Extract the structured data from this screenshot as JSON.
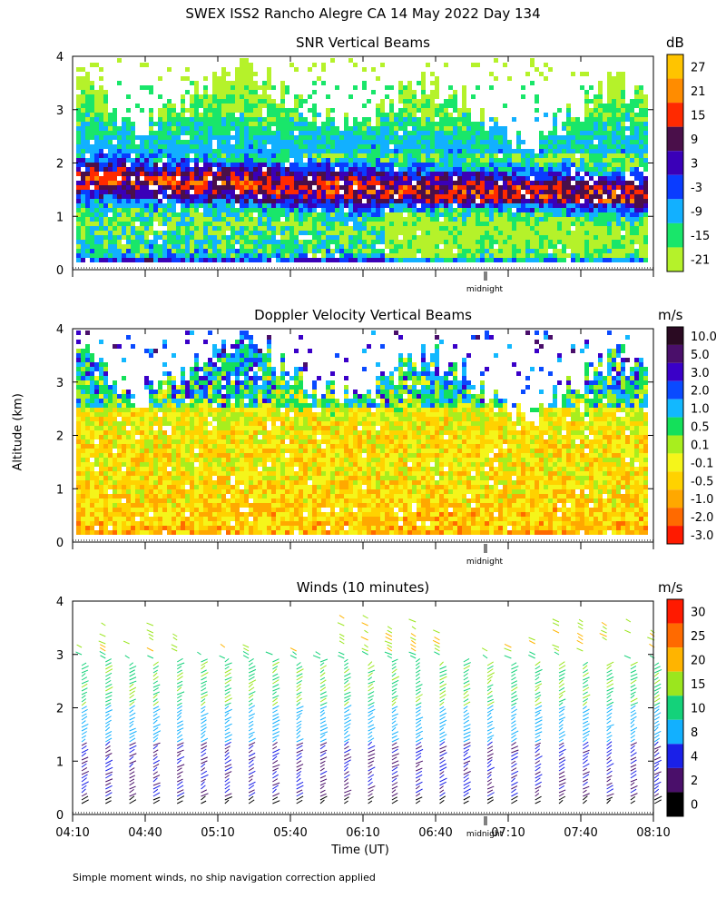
{
  "title": "SWEX ISS2 Rancho Alegre CA  14 May 2022 Day 134",
  "y_axis_label": "Altitude (km)",
  "x_axis_label": "Time (UT)",
  "footnote": "Simple moment winds, no ship navigation correction applied",
  "chart_data": [
    {
      "type": "heatmap",
      "title": "SNR Vertical Beams",
      "unit": "dB",
      "ylim": [
        0,
        4
      ],
      "y_ticks": [
        "0",
        "1",
        "2",
        "3",
        "4"
      ],
      "midnight_label": "midnight",
      "colorbar": [
        {
          "label": "27",
          "color": "#ffc400"
        },
        {
          "label": "21",
          "color": "#ff8c00"
        },
        {
          "label": "15",
          "color": "#ff2a00"
        },
        {
          "label": "9",
          "color": "#4a0f4a"
        },
        {
          "label": "3",
          "color": "#3a00b8"
        },
        {
          "label": "-3",
          "color": "#0a3cff"
        },
        {
          "label": "-9",
          "color": "#12b0ff"
        },
        {
          "label": "-15",
          "color": "#19e66a"
        },
        {
          "label": "-21",
          "color": "#b5f22a"
        }
      ]
    },
    {
      "type": "heatmap",
      "title": "Doppler Velocity Vertical Beams",
      "unit": "m/s",
      "ylim": [
        0,
        4
      ],
      "y_ticks": [
        "0",
        "1",
        "2",
        "3",
        "4"
      ],
      "midnight_label": "midnight",
      "colorbar": [
        {
          "label": "10.0",
          "color": "#2a0a22"
        },
        {
          "label": "5.0",
          "color": "#4a0f6a"
        },
        {
          "label": "3.0",
          "color": "#3a00c8"
        },
        {
          "label": "2.0",
          "color": "#0a4aff"
        },
        {
          "label": "1.0",
          "color": "#12b8ff"
        },
        {
          "label": "0.5",
          "color": "#14e05a"
        },
        {
          "label": "0.1",
          "color": "#a8ee1e"
        },
        {
          "label": "-0.1",
          "color": "#f5f51a"
        },
        {
          "label": "-0.5",
          "color": "#ffd200"
        },
        {
          "label": "-1.0",
          "color": "#ffa800"
        },
        {
          "label": "-2.0",
          "color": "#ff6a00"
        },
        {
          "label": "-3.0",
          "color": "#ff1a00"
        }
      ]
    },
    {
      "type": "scatter",
      "title": "Winds (10 minutes)",
      "unit": "m/s",
      "ylim": [
        0,
        4
      ],
      "y_ticks": [
        "0",
        "1",
        "2",
        "3",
        "4"
      ],
      "x_ticks": [
        "04:10",
        "04:40",
        "05:10",
        "05:40",
        "06:10",
        "06:40",
        "07:10",
        "07:40",
        "08:10"
      ],
      "midnight_label": "midnight",
      "colorbar": [
        {
          "label": "30",
          "color": "#ff1a00"
        },
        {
          "label": "25",
          "color": "#ff6a00"
        },
        {
          "label": "20",
          "color": "#ffb400"
        },
        {
          "label": "15",
          "color": "#9be61e"
        },
        {
          "label": "10",
          "color": "#14d27a"
        },
        {
          "label": "8",
          "color": "#12b0ff"
        },
        {
          "label": "4",
          "color": "#1a20e8"
        },
        {
          "label": "2",
          "color": "#4a0f6a"
        },
        {
          "label": "0",
          "color": "#000000"
        }
      ]
    }
  ]
}
